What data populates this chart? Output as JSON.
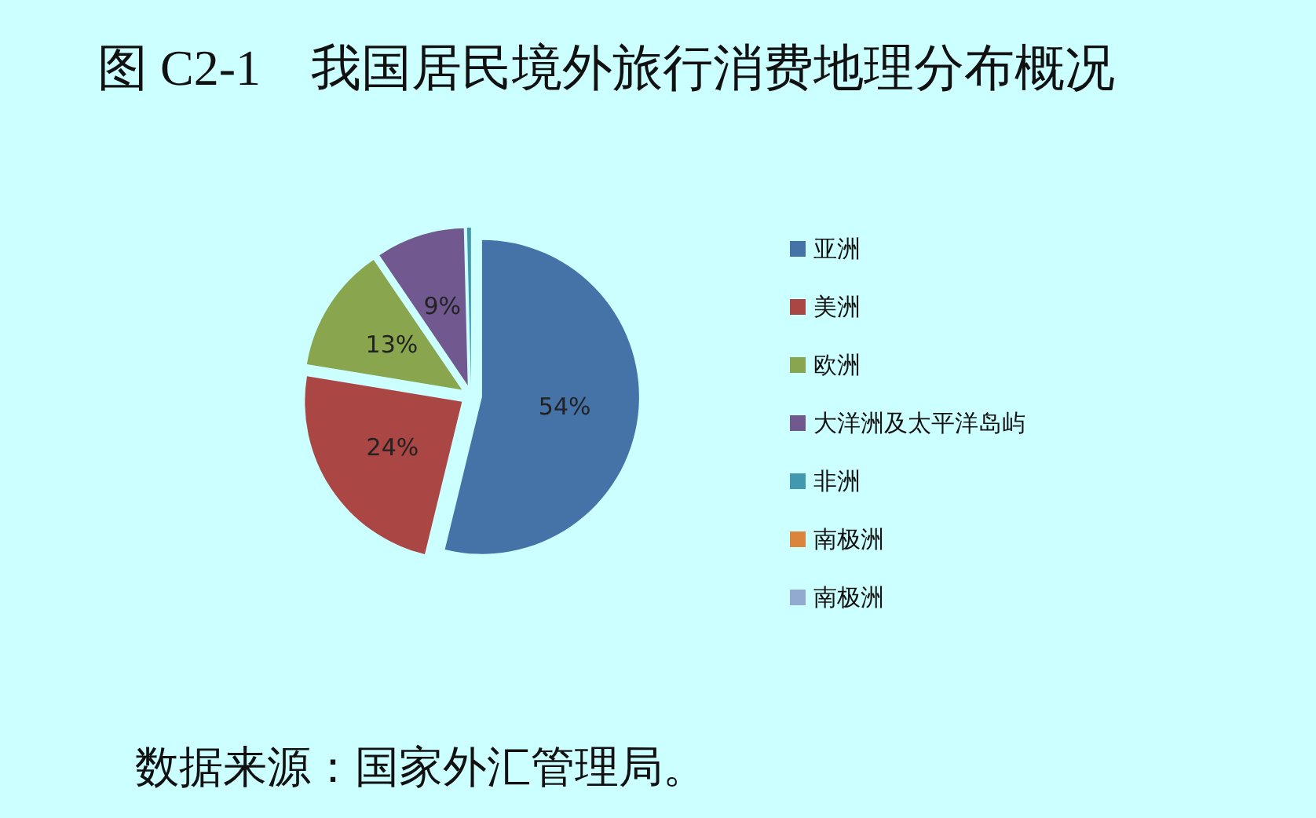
{
  "chart_data": {
    "type": "pie",
    "title": "图 C2-1　我国居民境外旅行消费地理分布概况",
    "categories": [
      "亚洲",
      "美洲",
      "欧洲",
      "大洋洲及太平洋岛屿",
      "非洲",
      "南极洲",
      "南极洲"
    ],
    "values": [
      53.8,
      23.8,
      12.9,
      9.1,
      0.4,
      0,
      0
    ],
    "colors": [
      "#4572a7",
      "#aa4643",
      "#89a54e",
      "#71588f",
      "#4198af",
      "#db843d",
      "#93a9cf"
    ],
    "value_labels": [
      "54%",
      "24%",
      "13%",
      "9%",
      null,
      null,
      null
    ],
    "legend": "right",
    "annotations": [
      "数据来源：国家外汇管理局。"
    ]
  }
}
